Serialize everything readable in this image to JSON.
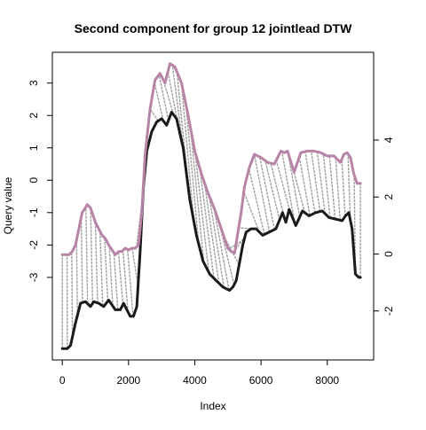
{
  "chart_data": {
    "type": "line",
    "title": "Second component for group 12 jointlead DTW",
    "xlabel": "Index",
    "ylabel": "Query value",
    "xlim": [
      -300,
      9400
    ],
    "xticks": [
      0,
      2000,
      4000,
      6000,
      8000
    ],
    "ylim_left": [
      -5.55,
      3.95
    ],
    "yticks_left": [
      -3,
      -2,
      -1,
      0,
      1,
      2,
      3
    ],
    "ylim_right": [
      -3.72,
      7.08
    ],
    "yticks_right": [
      -2,
      0,
      2,
      4
    ],
    "grid": false,
    "legend": "none",
    "series": [
      {
        "role": "reference",
        "color": "#b784a7",
        "axis": "left",
        "x": [
          0,
          200,
          300,
          400,
          500,
          600,
          700,
          750,
          850,
          1000,
          1200,
          1300,
          1400,
          1600,
          1700,
          1800,
          1900,
          2000,
          2100,
          2200,
          2300,
          2400,
          2500,
          2650,
          2800,
          2950,
          3100,
          3250,
          3400,
          3600,
          3800,
          4000,
          4200,
          4400,
          4600,
          4800,
          5000,
          5100,
          5200,
          5400,
          5500,
          5650,
          5800,
          6000,
          6200,
          6400,
          6600,
          6700,
          6800,
          7000,
          7200,
          7400,
          7600,
          7800,
          8000,
          8200,
          8400,
          8500,
          8600,
          8700,
          8800,
          8900,
          9000
        ],
        "y": [
          -2.3,
          -2.3,
          -2.2,
          -2.0,
          -1.5,
          -1.0,
          -0.85,
          -0.75,
          -0.85,
          -1.3,
          -1.7,
          -1.8,
          -2.0,
          -2.3,
          -2.2,
          -2.2,
          -2.1,
          -2.15,
          -2.1,
          -2.1,
          -2.0,
          -1.0,
          0.8,
          2.2,
          3.1,
          3.3,
          3.0,
          3.6,
          3.5,
          3.0,
          2.0,
          0.9,
          0.2,
          -0.4,
          -0.9,
          -1.5,
          -2.1,
          -2.2,
          -2.25,
          -1.0,
          -0.2,
          0.4,
          0.8,
          0.7,
          0.55,
          0.5,
          0.9,
          0.85,
          0.9,
          0.25,
          0.85,
          0.9,
          0.9,
          0.85,
          0.75,
          0.75,
          0.55,
          0.8,
          0.85,
          0.7,
          0.2,
          -0.1,
          -0.1
        ]
      },
      {
        "role": "query",
        "color": "#1a1a1a",
        "axis": "left",
        "x": [
          0,
          150,
          250,
          400,
          550,
          700,
          850,
          950,
          1100,
          1250,
          1400,
          1600,
          1750,
          1850,
          1950,
          2050,
          2150,
          2250,
          2350,
          2450,
          2550,
          2700,
          2850,
          3000,
          3150,
          3300,
          3450,
          3650,
          3850,
          4050,
          4250,
          4450,
          4650,
          4850,
          5050,
          5150,
          5250,
          5450,
          5550,
          5700,
          5850,
          6050,
          6250,
          6450,
          6650,
          6750,
          6850,
          7050,
          7250,
          7450,
          7650,
          7850,
          8050,
          8250,
          8450,
          8550,
          8650,
          8750,
          8850,
          8950,
          9000
        ],
        "y": [
          -5.2,
          -5.2,
          -5.1,
          -4.4,
          -3.8,
          -3.75,
          -3.9,
          -3.75,
          -3.8,
          -3.9,
          -3.7,
          -4.0,
          -4.0,
          -3.8,
          -4.0,
          -4.2,
          -4.2,
          -3.9,
          -2.2,
          -0.2,
          0.9,
          1.5,
          1.8,
          1.9,
          1.7,
          2.1,
          1.9,
          1.0,
          -0.6,
          -1.7,
          -2.5,
          -2.9,
          -3.1,
          -3.3,
          -3.4,
          -3.3,
          -3.1,
          -2.0,
          -1.6,
          -1.5,
          -1.5,
          -1.7,
          -1.6,
          -1.5,
          -1.0,
          -1.3,
          -0.9,
          -1.4,
          -0.95,
          -1.1,
          -1.0,
          -0.95,
          -1.15,
          -1.2,
          -1.25,
          -1.1,
          -1.0,
          -1.5,
          -2.9,
          -3.0,
          -3.0
        ]
      },
      {
        "role": "alignment-lines",
        "color": "#a0a0a0",
        "count": 60
      }
    ]
  }
}
